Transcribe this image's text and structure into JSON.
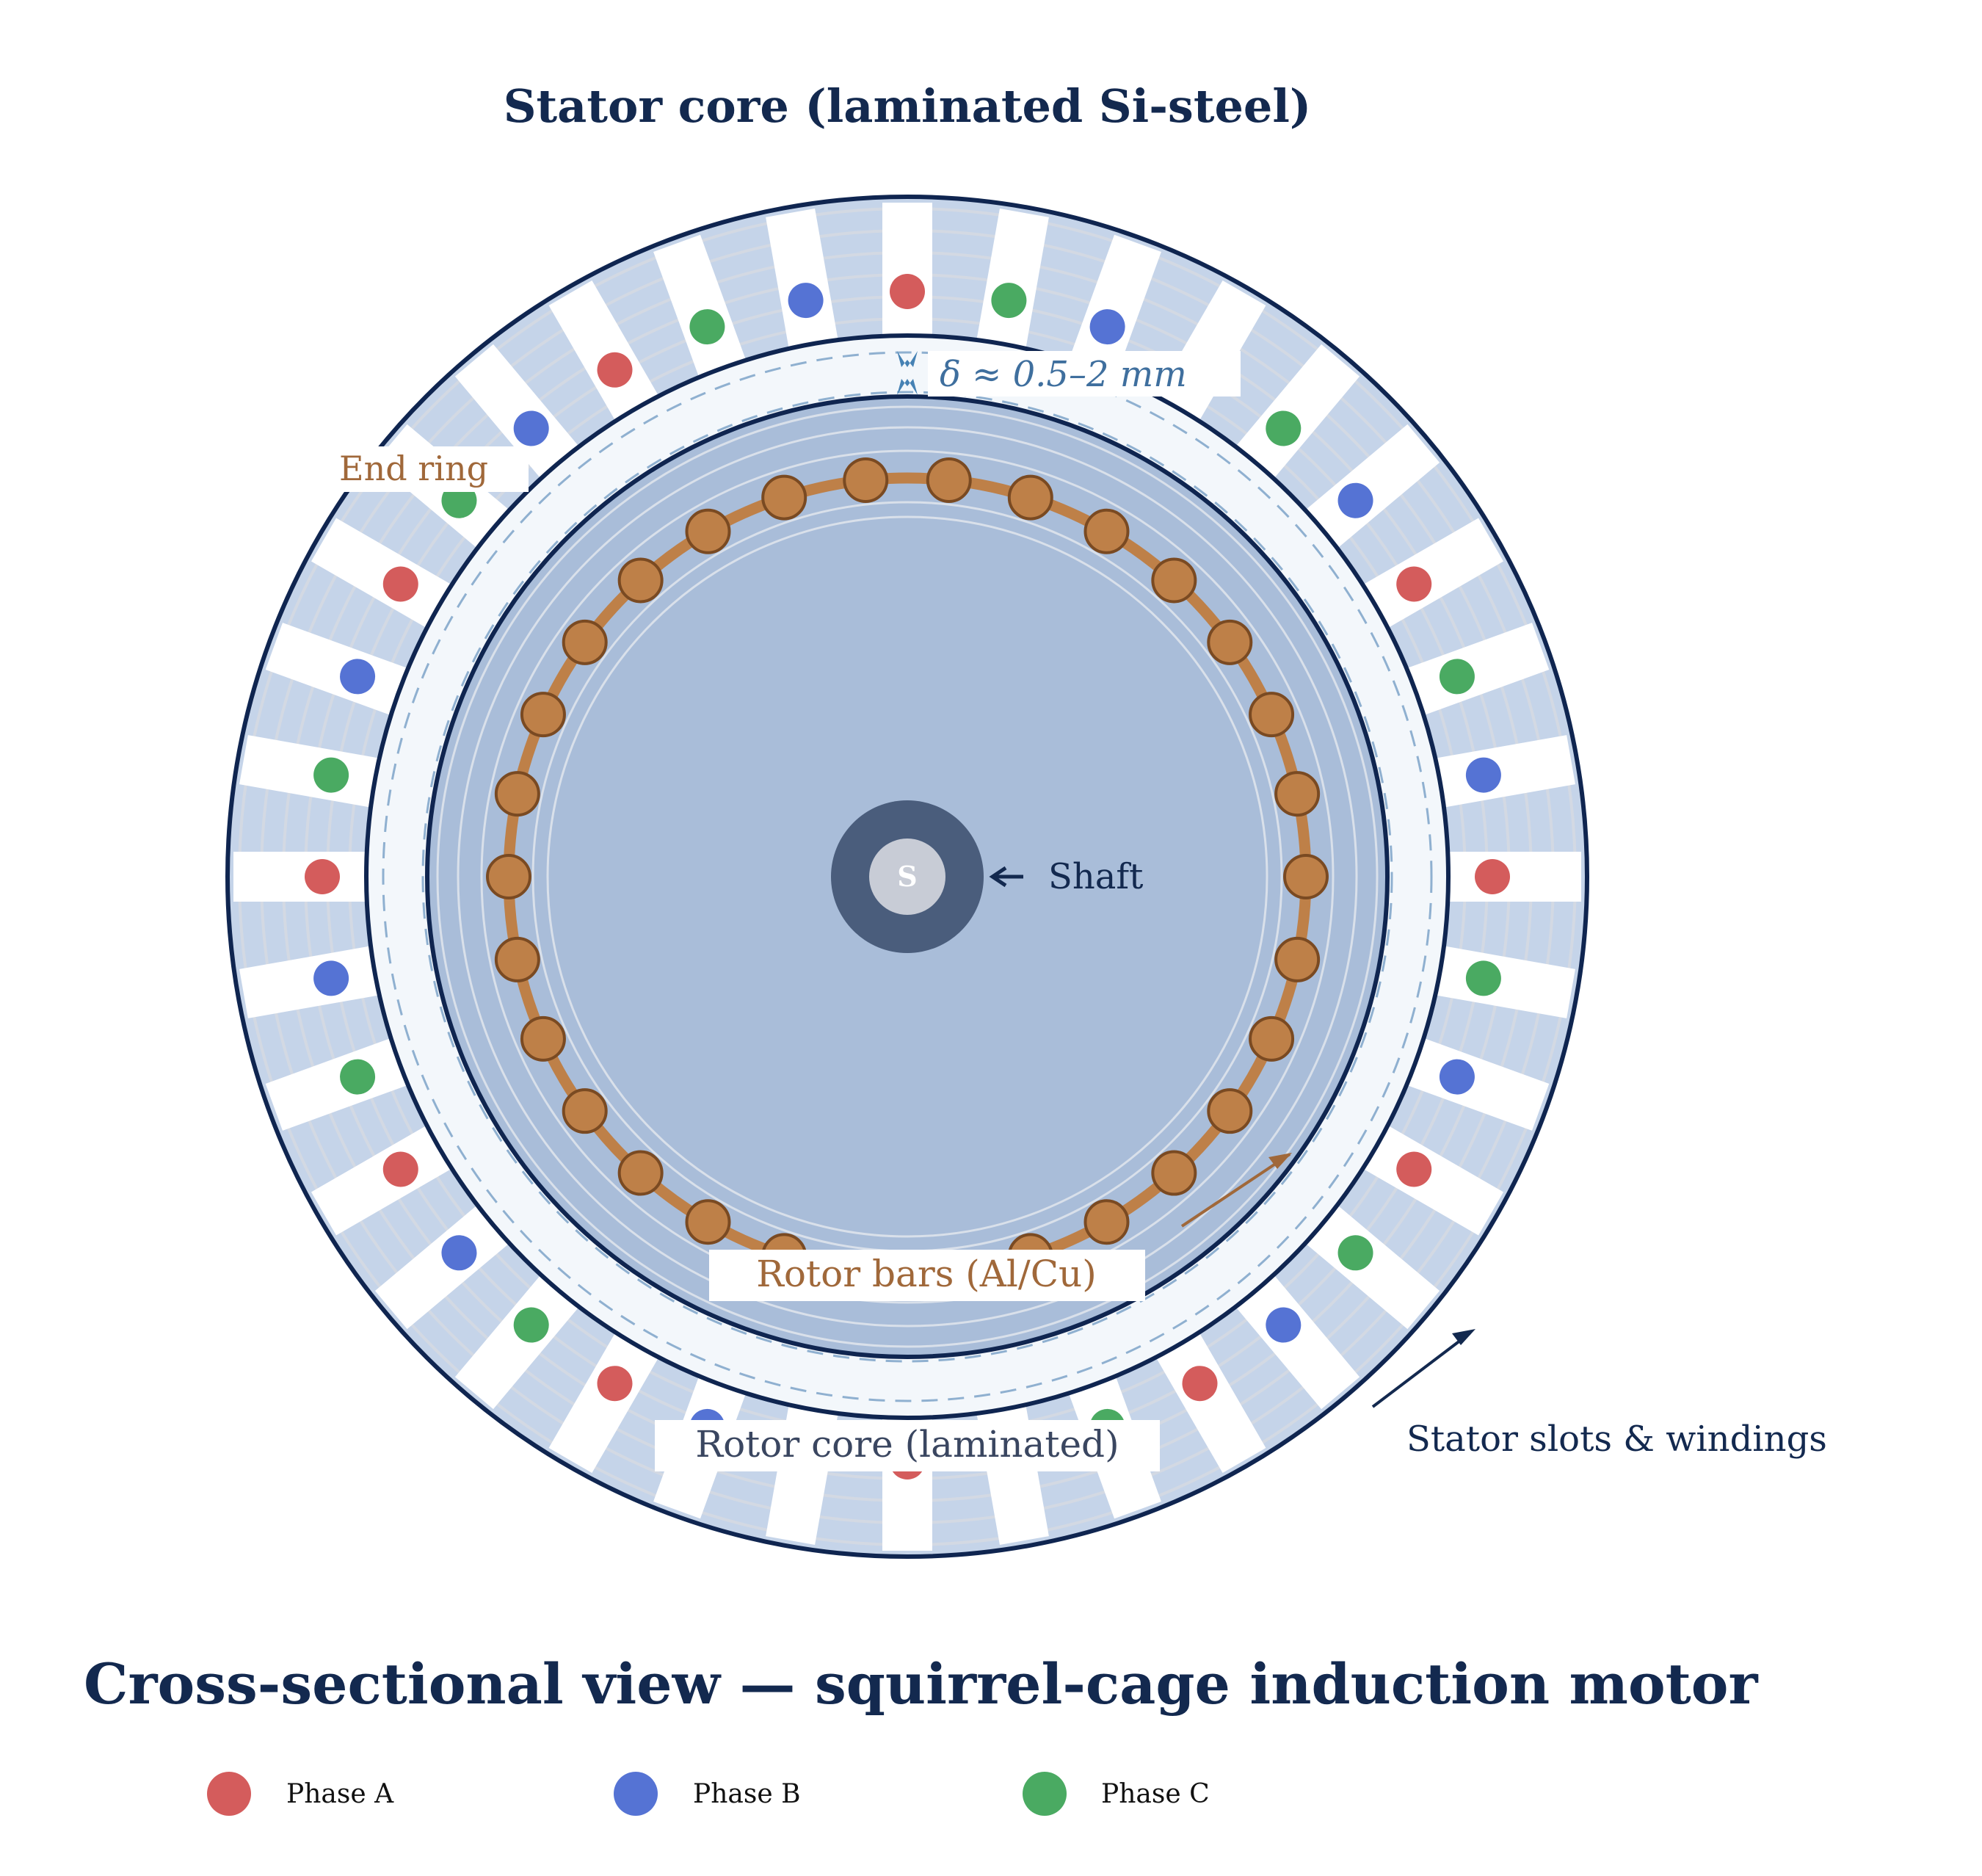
{
  "top_title": "Stator core (laminated Si-steel)",
  "bottom_title": "Cross-sectional view — squirrel-cage induction motor",
  "labels": {
    "air_gap": "δ ≈ 0.5–2 mm",
    "end_ring": "End ring",
    "shaft": "Shaft",
    "shaft_mark": "S",
    "rotor_bars": "Rotor bars (Al/Cu)",
    "rotor_core": "Rotor core (laminated)",
    "stator_slots": "Stator slots & windings"
  },
  "legend": [
    {
      "label": "Phase A",
      "color": "#d45c5c"
    },
    {
      "label": "Phase B",
      "color": "#5573d4"
    },
    {
      "label": "Phase C",
      "color": "#4aaa62"
    }
  ],
  "stator": {
    "slot_count": 36,
    "phase_sequence_clockwise_from_top": [
      "A",
      "C",
      "B"
    ]
  },
  "rotor": {
    "bar_count": 30
  },
  "colors": {
    "outline": "#0f2550",
    "stator_fill": "#c5d4e9",
    "air_gap_fill": "#f3f7fb",
    "rotor_fill": "#a9bdd9",
    "bar_fill": "#be8048",
    "bar_stroke": "#7a4a22",
    "shaft_outer": "#4a5d7c",
    "shaft_inner": "#c8ccd6",
    "annotation_brown": "#a0683a",
    "annotation_blue": "#3f6f9e"
  }
}
